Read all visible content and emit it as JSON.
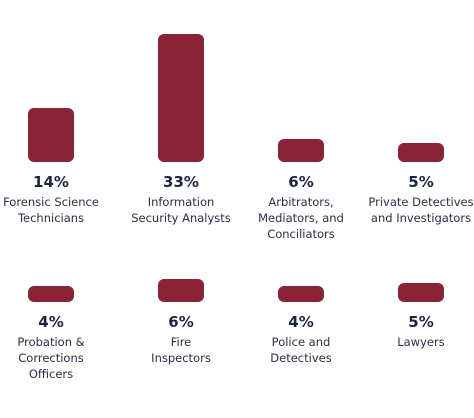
{
  "chart_data": {
    "type": "bar",
    "categories": [
      "Forensic Science\nTechnicians",
      "Information\nSecurity Analysts",
      "Arbitrators,\nMediators, and\nConciliators",
      "Private Detectives\nand Investigators",
      "Probation &\nCorrections\nOfficers",
      "Fire\nInspectors",
      "Police and\nDetectives",
      "Lawyers"
    ],
    "values": [
      14,
      33,
      6,
      5,
      4,
      6,
      4,
      5
    ],
    "value_labels": [
      "14%",
      "33%",
      "6%",
      "5%",
      "4%",
      "6%",
      "4%",
      "5%"
    ],
    "color": "#8b2336"
  }
}
